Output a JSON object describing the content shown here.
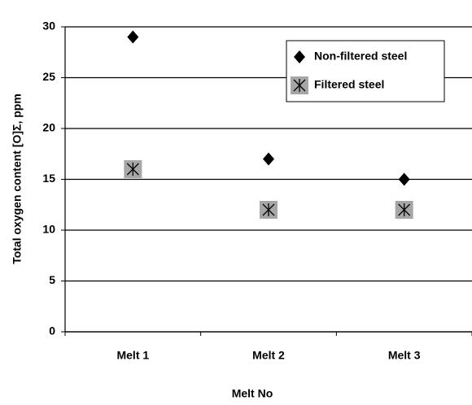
{
  "chart_data": {
    "type": "scatter",
    "xlabel": "Melt No",
    "ylabel": "Total oxygen content [O]Σ, ppm",
    "categories": [
      "Melt 1",
      "Melt 2",
      "Melt 3"
    ],
    "series": [
      {
        "name": "Non-filtered steel",
        "color": "#000000",
        "marker": "diamond",
        "values": [
          29,
          17,
          15
        ]
      },
      {
        "name": "Filtered steel",
        "color": "#a6a6a6",
        "marker": "asterisk-square",
        "values": [
          16,
          12,
          12
        ]
      }
    ],
    "ylim": [
      0,
      30
    ],
    "yticks": [
      0,
      5,
      10,
      15,
      20,
      25,
      30
    ],
    "grid": true,
    "legend": "upper right"
  }
}
